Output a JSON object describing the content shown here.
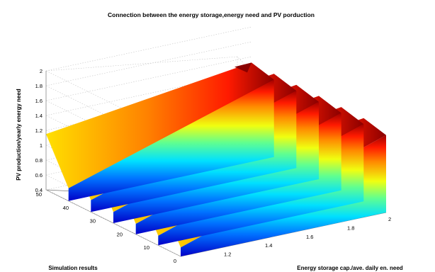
{
  "chart_data": {
    "type": "surface",
    "title": "Connection between the energy storage,energy need and PV porduction",
    "xlabel": "Energy storage cap./ave. daily en. need",
    "ylabel": "Simulation results",
    "zlabel": "PV production/yearly energy need",
    "xlim": [
      1.0,
      2.0
    ],
    "ylim": [
      0,
      50
    ],
    "zlim": [
      0.4,
      2.0
    ],
    "x_ticks": [
      "1.2",
      "1.4",
      "1.6",
      "1.8",
      "2"
    ],
    "y_ticks": [
      "0",
      "10",
      "20",
      "30",
      "40",
      "50"
    ],
    "z_ticks": [
      "0.4",
      "0.6",
      "0.8",
      "1",
      "1.2",
      "1.4",
      "1.6",
      "1.8",
      "2"
    ],
    "colormap": "jet",
    "grid": true,
    "segments": [
      {
        "x_start": 1.0,
        "x_end": 2.0,
        "z_low": 0.57,
        "z_high": 1.15
      },
      {
        "x_start": 1.0,
        "x_end": 2.0,
        "z_low": 0.56,
        "z_high": 1.14
      },
      {
        "x_start": 1.0,
        "x_end": 2.0,
        "z_low": 0.55,
        "z_high": 1.13
      },
      {
        "x_start": 1.0,
        "x_end": 2.0,
        "z_low": 0.54,
        "z_high": 1.12
      },
      {
        "x_start": 1.0,
        "x_end": 2.0,
        "z_low": 0.53,
        "z_high": 1.11
      },
      {
        "x_start": 1.0,
        "x_end": 2.0,
        "z_low": 0.52,
        "z_high": 1.1
      }
    ],
    "peak": {
      "x": 2.0,
      "y": 50,
      "z": 1.52
    }
  }
}
